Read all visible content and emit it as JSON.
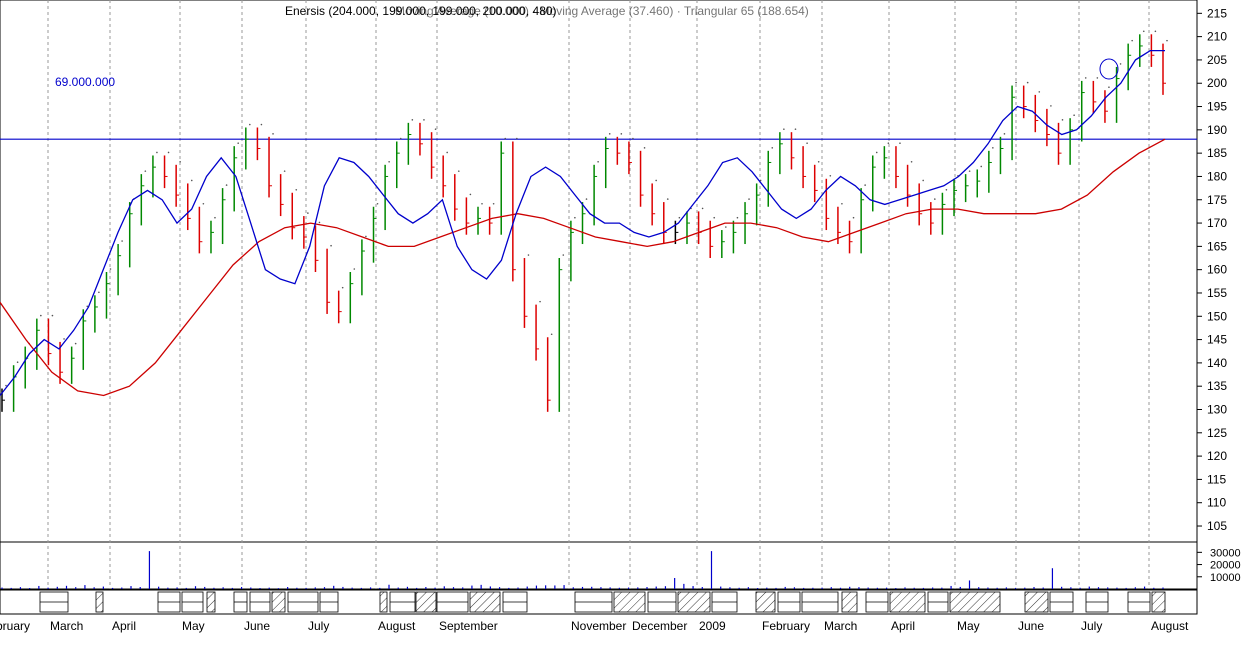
{
  "header": {
    "title_primary": "Enersis (204.000, 199.000, 199.000, 200.000, 480)",
    "title_overlay": "Moving Average (10.000) · Moving Average (37.460) · Triangular 65 (188.654)",
    "level_label": "69.000.000"
  },
  "colors": {
    "up_bar": "#008800",
    "down_bar": "#dd0000",
    "neutral_bar": "#000000",
    "ma_short": "#0000cc",
    "ma_triangular": "#cc0000",
    "hline": "#0000cc",
    "grid": "#999999",
    "volume": "#0000cc"
  },
  "chart_data": [
    {
      "type": "line",
      "title": "Enersis",
      "xlabel": "",
      "ylabel": "",
      "x_ticks": [
        "bruary",
        "March",
        "April",
        "May",
        "June",
        "July",
        "August",
        "September",
        "November",
        "December",
        "2009",
        "February",
        "March",
        "April",
        "May",
        "June",
        "July",
        "August"
      ],
      "y_ticks": [
        105,
        110,
        115,
        120,
        125,
        130,
        135,
        140,
        145,
        150,
        155,
        160,
        165,
        170,
        175,
        180,
        185,
        190,
        195,
        200,
        205,
        210,
        215
      ],
      "ylim": [
        102,
        217
      ],
      "grid": "vertical dashed at month starts",
      "legend": "none",
      "horizontal_line": 188,
      "series": [
        {
          "name": "Enersis",
          "style": "ohlc-bars",
          "values": [
            132,
            137,
            141,
            147,
            142,
            138,
            141,
            149,
            152,
            157,
            163,
            172,
            178,
            182,
            180,
            176,
            171,
            166,
            168,
            175,
            184,
            188,
            186,
            178,
            174,
            169,
            167,
            162,
            153,
            151,
            157,
            164,
            171,
            180,
            185,
            189,
            187,
            182,
            178,
            173,
            170,
            171,
            170,
            185,
            160,
            150,
            143,
            132,
            160,
            168,
            172,
            180,
            186,
            185,
            183,
            176,
            172,
            168,
            168,
            170,
            168,
            165,
            166,
            168,
            172,
            176,
            183,
            187,
            184,
            180,
            177,
            171,
            168,
            166,
            175,
            182,
            184,
            180,
            176,
            172,
            170,
            174,
            177,
            178,
            179,
            183,
            186,
            197,
            195,
            192,
            189,
            185,
            190,
            198,
            196,
            194,
            201,
            206,
            208,
            206,
            200
          ]
        },
        {
          "name": "Moving Average (10.000)",
          "style": "line",
          "values": [
            133,
            137,
            142,
            145,
            143,
            147,
            152,
            160,
            168,
            175,
            177,
            175,
            170,
            173,
            180,
            184,
            180,
            170,
            160,
            158,
            157,
            165,
            178,
            184,
            183,
            180,
            176,
            172,
            170,
            172,
            175,
            165,
            160,
            158,
            162,
            172,
            180,
            182,
            180,
            176,
            172,
            170,
            170,
            168,
            167,
            168,
            170,
            174,
            178,
            183,
            184,
            181,
            177,
            173,
            171,
            173,
            177,
            180,
            178,
            175,
            174,
            175,
            176,
            177,
            178,
            180,
            183,
            187,
            192,
            195,
            194,
            191,
            189,
            190,
            193,
            197,
            200,
            205,
            207,
            207
          ]
        },
        {
          "name": "Triangular 65 (188.654)",
          "style": "line",
          "values": [
            153,
            145,
            138,
            134,
            133,
            135,
            140,
            147,
            154,
            161,
            166,
            169,
            170,
            169,
            167,
            165,
            165,
            167,
            169,
            171,
            172,
            171,
            169,
            167,
            166,
            165,
            166,
            168,
            170,
            170,
            169,
            167,
            166,
            168,
            170,
            172,
            173,
            173,
            172,
            172,
            172,
            173,
            176,
            181,
            185,
            188
          ]
        }
      ]
    },
    {
      "type": "bar",
      "title": "Volume",
      "y_ticks": [
        10000,
        20000,
        30000
      ],
      "y_ticks_display": [
        "10000",
        "20000",
        "30000"
      ],
      "ylim": [
        0,
        36000
      ],
      "values": [
        1200,
        900,
        1500,
        800,
        2500,
        1100,
        1800,
        2600,
        1500,
        3200,
        1400,
        2000,
        900,
        1200,
        2400,
        1600,
        31000,
        1900,
        1100,
        1300,
        900,
        2300,
        1700,
        1000,
        1400,
        900,
        1600,
        1200,
        800,
        1100,
        700,
        1600,
        1000,
        900,
        1300,
        1500,
        2600,
        1700,
        1100,
        900,
        1300,
        900,
        3500,
        1200,
        1800,
        900,
        1600,
        1100,
        2200,
        1500,
        1300,
        2800,
        3400,
        2100,
        1500,
        900,
        1200,
        2000,
        2800,
        3000,
        2900,
        3200,
        1400,
        1700,
        1800,
        1500,
        1300,
        1000,
        1200,
        1300,
        1600,
        2000,
        2300,
        9000,
        4200,
        2400,
        1600,
        31000,
        2000,
        1400,
        1000,
        1500,
        800,
        1100,
        900,
        1700,
        1400,
        900,
        1000,
        1100,
        1500,
        1000,
        1800,
        1500,
        1200,
        1000,
        1100,
        800,
        1300,
        1000,
        900,
        1200,
        1100,
        2500,
        1700,
        7000,
        1500,
        1200,
        1000,
        1300,
        900,
        1100,
        1600,
        1200,
        17000,
        1800,
        1400,
        1000,
        2000,
        1500,
        1300,
        1100,
        900,
        1400,
        2000,
        1000,
        1200
      ]
    }
  ]
}
